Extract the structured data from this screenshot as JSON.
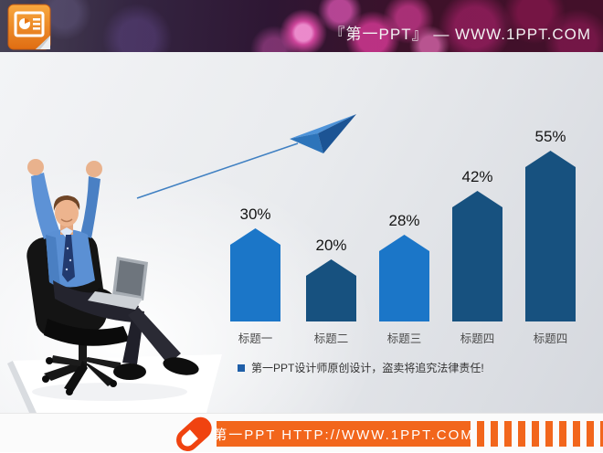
{
  "header": {
    "brand_text": "『第一PPT』 — WWW.1PPT.COM"
  },
  "slide": {
    "disclaimer_text": "第一PPT设计师原创设计，盗卖将追究法律责任!"
  },
  "chart_data": {
    "type": "bar",
    "title": "",
    "xlabel": "",
    "ylabel": "",
    "categories": [
      "标题一",
      "标题二",
      "标题三",
      "标题四",
      "标题四"
    ],
    "values": [
      30,
      20,
      28,
      42,
      55
    ],
    "value_labels": [
      "30%",
      "20%",
      "28%",
      "42%",
      "55%"
    ],
    "bar_colors": [
      "#1b76c8",
      "#17517f",
      "#1b76c8",
      "#17517f",
      "#17517f"
    ],
    "bar_shape": "pentagon-arrow",
    "ylim": [
      0,
      60
    ],
    "grid": false,
    "legend": false
  },
  "footer": {
    "site_text": "第一PPT HTTP://WWW.1PPT.COM"
  },
  "colors": {
    "bar_light_blue": "#1b76c8",
    "bar_dark_blue": "#17517f",
    "footer_orange": "#f2661c",
    "capsule_orange_red": "#f04310",
    "ppt_icon_orange": "#ef7c16",
    "header_text": "#f2f2f2"
  },
  "icons": {
    "powerpoint_logo": "powerpoint-document-icon",
    "paper_plane": "paper-plane-icon",
    "capsule": "capsule-link-icon",
    "barcode": "barcode-bars-decoration",
    "bullet": "blue-square-bullet"
  }
}
